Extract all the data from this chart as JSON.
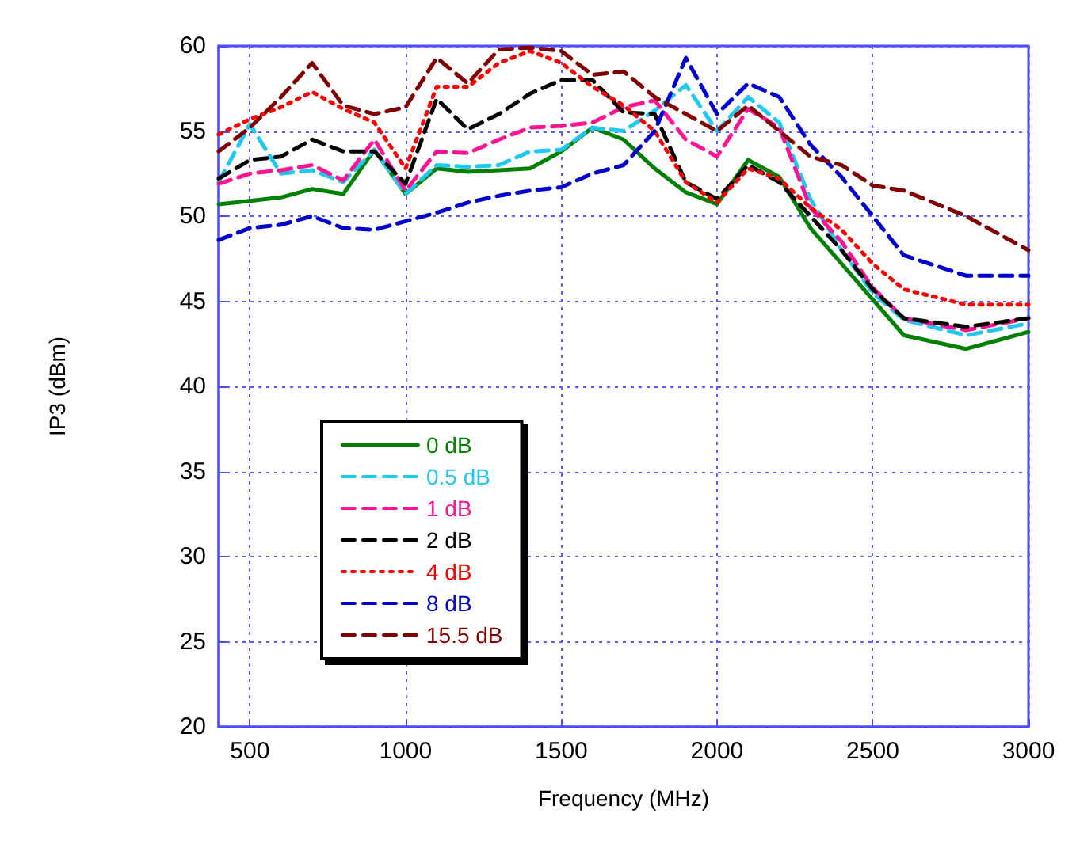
{
  "chart_data": {
    "type": "line",
    "xlabel": "Frequency (MHz)",
    "ylabel": "IP3 (dBm)",
    "x": [
      400,
      500,
      600,
      700,
      800,
      900,
      1000,
      1100,
      1200,
      1300,
      1400,
      1500,
      1600,
      1700,
      1800,
      1900,
      2000,
      2100,
      2200,
      2300,
      2400,
      2500,
      2600,
      2800,
      3000
    ],
    "xlim": [
      400,
      3000
    ],
    "xticks": [
      500,
      1000,
      1500,
      2000,
      2500,
      3000
    ],
    "ylim": [
      20,
      60
    ],
    "yticks": [
      20,
      25,
      30,
      35,
      40,
      45,
      50,
      55,
      60
    ],
    "grid": true,
    "legend": "bottom left",
    "marker": "none",
    "series": [
      {
        "name": "0 dB",
        "color": "#008000",
        "line_style": "solid",
        "values": [
          50.7,
          50.9,
          51.1,
          51.6,
          51.3,
          53.9,
          51.3,
          52.8,
          52.6,
          52.7,
          52.8,
          53.8,
          55.2,
          54.5,
          52.8,
          51.4,
          50.7,
          53.3,
          52.3,
          49.3,
          47.2,
          45.1,
          43.0,
          42.2,
          43.2
        ]
      },
      {
        "name": "0.5 dB",
        "color": "#1ec8f0",
        "line_style": "dashed",
        "values": [
          52.0,
          55.4,
          52.5,
          52.7,
          52.0,
          53.9,
          51.3,
          53.0,
          52.9,
          53.0,
          53.8,
          53.9,
          55.2,
          55.0,
          56.2,
          57.7,
          55.0,
          57.0,
          55.5,
          51.0,
          48.0,
          45.5,
          43.9,
          43.0,
          43.7
        ]
      },
      {
        "name": "1 dB",
        "color": "#ff1493",
        "line_style": "dashed",
        "values": [
          51.9,
          52.5,
          52.7,
          53.0,
          52.1,
          54.5,
          51.5,
          53.8,
          53.7,
          54.5,
          55.2,
          55.3,
          55.5,
          56.4,
          56.8,
          54.5,
          53.5,
          56.3,
          55.2,
          50.5,
          48.5,
          45.8,
          44.0,
          43.3,
          44.0
        ]
      },
      {
        "name": "2 dB",
        "color": "#000000",
        "line_style": "dashed",
        "values": [
          52.2,
          53.3,
          53.5,
          54.5,
          53.8,
          53.8,
          51.9,
          56.9,
          55.1,
          56.0,
          57.2,
          58.0,
          58.0,
          56.1,
          56.0,
          52.0,
          51.0,
          53.0,
          52.0,
          50.0,
          48.0,
          45.7,
          44.0,
          43.5,
          44.0
        ]
      },
      {
        "name": "4 dB",
        "color": "#ff0000",
        "line_style": "dotted",
        "values": [
          54.8,
          55.7,
          56.4,
          57.3,
          56.3,
          55.5,
          52.8,
          57.6,
          57.6,
          59.0,
          59.7,
          59.0,
          57.6,
          56.5,
          55.0,
          52.0,
          50.8,
          52.8,
          52.2,
          50.5,
          49.2,
          47.2,
          45.7,
          44.8,
          44.8
        ]
      },
      {
        "name": "8 dB",
        "color": "#0000cc",
        "line_style": "dashed",
        "values": [
          48.6,
          49.3,
          49.5,
          50.0,
          49.3,
          49.2,
          49.7,
          50.2,
          50.8,
          51.2,
          51.5,
          51.7,
          52.5,
          53.0,
          55.0,
          59.3,
          56.0,
          57.8,
          57.0,
          54.2,
          52.3,
          50.0,
          47.7,
          46.5,
          46.5
        ]
      },
      {
        "name": "15.5 dB",
        "color": "#800000",
        "line_style": "dashed",
        "values": [
          53.8,
          55.2,
          57.0,
          59.0,
          56.5,
          56.0,
          56.4,
          59.3,
          57.8,
          59.8,
          59.9,
          59.7,
          58.3,
          58.5,
          57.0,
          56.0,
          55.0,
          56.5,
          55.0,
          53.5,
          53.0,
          51.8,
          51.5,
          50.0,
          48.0
        ]
      }
    ]
  }
}
